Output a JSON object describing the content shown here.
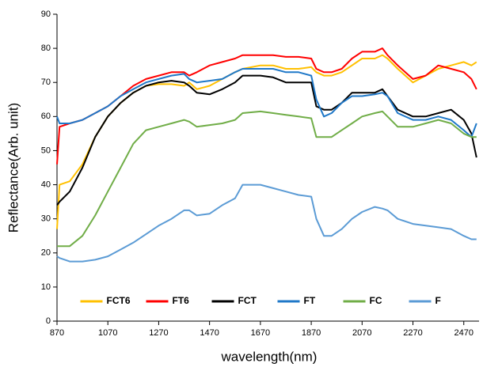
{
  "chart_data": {
    "type": "line",
    "x_label": "wavelength(nm)",
    "y_label": "Reflectance(Arb. unit)",
    "x": [
      870,
      880,
      920,
      970,
      1020,
      1070,
      1120,
      1170,
      1220,
      1270,
      1320,
      1370,
      1390,
      1420,
      1470,
      1520,
      1570,
      1600,
      1670,
      1720,
      1770,
      1820,
      1870,
      1890,
      1920,
      1950,
      1990,
      2030,
      2070,
      2120,
      2150,
      2170,
      2210,
      2270,
      2320,
      2370,
      2420,
      2470,
      2500,
      2520
    ],
    "series": [
      {
        "name": "FCT6",
        "color": "#ffc000",
        "values": [
          27,
          40,
          41,
          46,
          54,
          60,
          64,
          67,
          69,
          69.5,
          69.5,
          69,
          70,
          68,
          69,
          71,
          73,
          74,
          75,
          75,
          74,
          74,
          74.5,
          73,
          72,
          72,
          73,
          75,
          77,
          77,
          78,
          77,
          74,
          70,
          72,
          74,
          75,
          76,
          75,
          76
        ]
      },
      {
        "name": "FT6",
        "color": "#ff0000",
        "values": [
          46,
          57,
          58,
          59,
          61,
          63,
          66,
          69,
          71,
          72,
          73,
          73,
          72,
          73,
          75,
          76,
          77,
          78,
          78,
          78,
          77.5,
          77.5,
          77,
          74,
          73,
          73,
          74,
          77,
          79,
          79,
          80,
          78,
          75,
          71,
          72,
          75,
          74,
          73,
          71,
          68
        ]
      },
      {
        "name": "FCT",
        "color": "#000000",
        "values": [
          34,
          35,
          38,
          45,
          54,
          60,
          64,
          67,
          69,
          70,
          70.5,
          70,
          69,
          67,
          66.5,
          68,
          70,
          72,
          72,
          71.5,
          70,
          70,
          70,
          63,
          62,
          62,
          64,
          67,
          67,
          67,
          68,
          66,
          62,
          60,
          60,
          61,
          62,
          59,
          55,
          48
        ]
      },
      {
        "name": "FT",
        "color": "#1f78c8",
        "values": [
          60,
          58,
          58,
          59,
          61,
          63,
          66,
          68,
          70,
          71,
          72,
          72.5,
          71,
          70,
          70.5,
          71,
          73,
          74,
          74,
          74,
          73,
          73,
          72,
          65,
          60,
          61,
          64,
          66,
          66,
          66.5,
          67,
          66,
          61,
          59,
          59,
          60,
          59,
          56,
          54,
          58
        ]
      },
      {
        "name": "FC",
        "color": "#70ad47",
        "values": [
          22,
          22,
          22,
          25,
          31,
          38,
          45,
          52,
          56,
          57,
          58,
          59,
          58.5,
          57,
          57.5,
          58,
          59,
          61,
          61.5,
          61,
          60.5,
          60,
          59.5,
          54,
          54,
          54,
          56,
          58,
          60,
          61,
          61.5,
          60,
          57,
          57,
          58,
          59,
          58,
          55,
          54,
          54
        ]
      },
      {
        "name": "F",
        "color": "#5b9bd5",
        "values": [
          19,
          18.5,
          17.5,
          17.5,
          18,
          19,
          21,
          23,
          25.5,
          28,
          30,
          32.5,
          32.5,
          31,
          31.5,
          34,
          36,
          40,
          40,
          39,
          38,
          37,
          36.5,
          30,
          25,
          25,
          27,
          30,
          32,
          33.5,
          33,
          32.5,
          30,
          28.5,
          28,
          27.5,
          27,
          25,
          24,
          24
        ]
      }
    ],
    "xlim": [
      870,
      2530
    ],
    "xticks": [
      870,
      1070,
      1270,
      1470,
      1670,
      1870,
      2070,
      2270,
      2470
    ],
    "ylim": [
      0,
      90
    ],
    "yticks": [
      0,
      10,
      20,
      30,
      40,
      50,
      60,
      70,
      80,
      90
    ],
    "grid": false,
    "legend": "lower center"
  }
}
